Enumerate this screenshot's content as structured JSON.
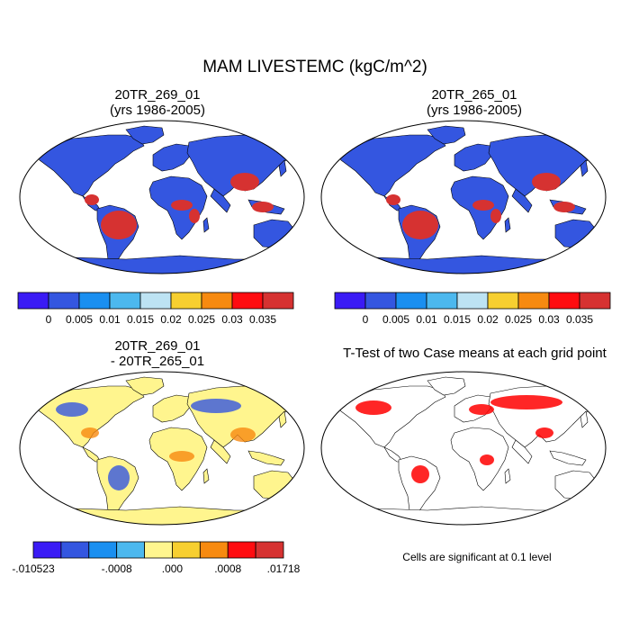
{
  "title": "MAM LIVESTEMC (kgC/m^2)",
  "panels": [
    {
      "title_line1": "20TR_269_01",
      "title_line2": "(yrs 1986-2005)"
    },
    {
      "title_line1": "20TR_265_01",
      "title_line2": "(yrs 1986-2005)"
    },
    {
      "title_line1": "20TR_269_01",
      "title_line2": "- 20TR_265_01"
    },
    {
      "title_line1": "T-Test of two Case means at each grid point",
      "title_line2": ""
    }
  ],
  "colorbar_abs": {
    "colors": [
      "#3a1bf5",
      "#3456e0",
      "#1a8ff0",
      "#4cb8ee",
      "#bde3f3",
      "#f7cf30",
      "#f78a10",
      "#ff0c10",
      "#d63231"
    ],
    "tick_labels": [
      "0",
      "0.005",
      "0.01",
      "0.015",
      "0.02",
      "0.025",
      "0.03",
      "0.035"
    ]
  },
  "colorbar_diff": {
    "colors": [
      "#3a1bf5",
      "#3456e0",
      "#1a8ff0",
      "#4cb8ee",
      "#fff58e",
      "#f7cf30",
      "#f78a10",
      "#ff0c10",
      "#d63231"
    ],
    "tick_labels": [
      ".010523",
      ".0008",
      ".000",
      ".0008",
      ".01718"
    ],
    "tick_label_prefixes": [
      "-",
      "-",
      "",
      "",
      ""
    ]
  },
  "significance_note": "Cells are significant at 0.1 level",
  "colors": {
    "ocean": "#ffffff",
    "land_low": "#3456e0",
    "high": "#d63231",
    "diff_background": "#fff58e",
    "significant": "#ff0000",
    "outline": "#000000"
  }
}
